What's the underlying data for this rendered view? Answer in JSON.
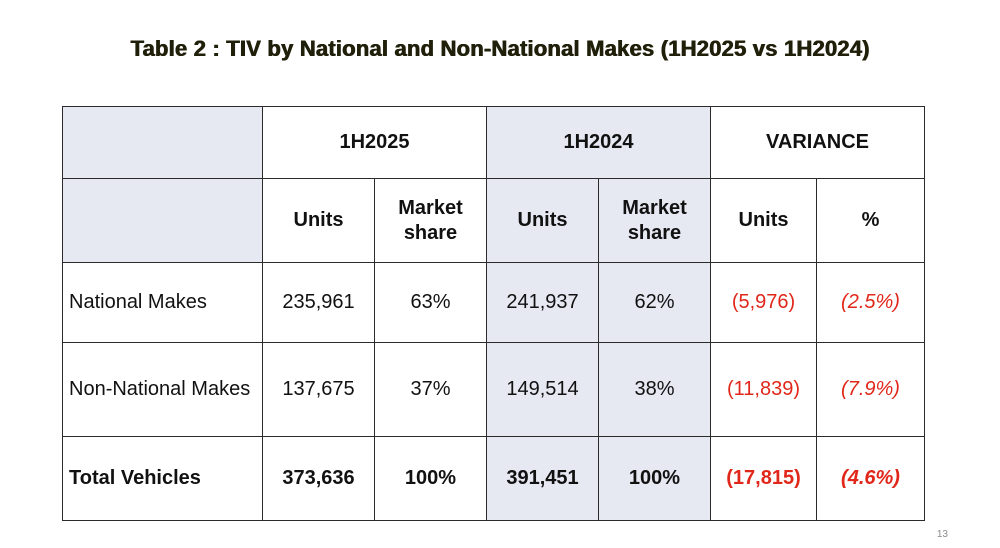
{
  "title": "Table 2 : TIV by National and Non-National Makes (1H2025 vs 1H2024)",
  "page_number": "13",
  "header": {
    "group_1h2025": "1H2025",
    "group_1h2024": "1H2024",
    "group_variance": "VARIANCE",
    "units": "Units",
    "market_share": "Market share",
    "percent": "%"
  },
  "rows": [
    {
      "label": "National Makes",
      "u25": "235,961",
      "ms25": "63%",
      "u24": "241,937",
      "ms24": "62%",
      "vu": "(5,976)",
      "vp": "(2.5%)"
    },
    {
      "label": "Non-National Makes",
      "u25": "137,675",
      "ms25": "37%",
      "u24": "149,514",
      "ms24": "38%",
      "vu": "(11,839)",
      "vp": "(7.9%)"
    },
    {
      "label": "Total Vehicles",
      "u25": "373,636",
      "ms25": "100%",
      "u24": "391,451",
      "ms24": "100%",
      "vu": "(17,815)",
      "vp": "(4.6%)"
    }
  ],
  "colors": {
    "negative": "#e0271a",
    "shade": "#e6e8f2",
    "border": "#2b2b2b"
  }
}
